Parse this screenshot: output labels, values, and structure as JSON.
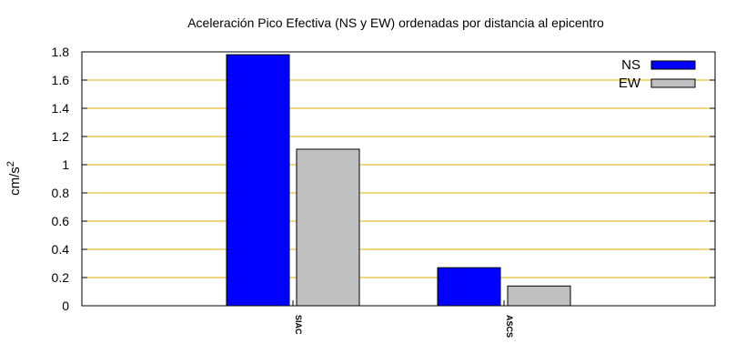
{
  "chart_data": {
    "type": "bar",
    "title": "Aceleración Pico Efectiva (NS y EW) ordenadas por distancia al epicentro",
    "xlabel": "",
    "ylabel": "cm/s",
    "ylabel_sup": "2",
    "categories": [
      "SIAC",
      "ASCS"
    ],
    "series": [
      {
        "name": "NS",
        "values": [
          1.78,
          0.27
        ],
        "color": "#0000ff"
      },
      {
        "name": "EW",
        "values": [
          1.11,
          0.14
        ],
        "color": "#c0c0c0"
      }
    ],
    "ylim": [
      0,
      1.8
    ],
    "yticks": [
      "0",
      "0.2",
      "0.4",
      "0.6",
      "0.8",
      "1",
      "1.2",
      "1.4",
      "1.6",
      "1.8"
    ],
    "grid": true,
    "grid_color": "#e0b000",
    "legend": "top-right"
  }
}
